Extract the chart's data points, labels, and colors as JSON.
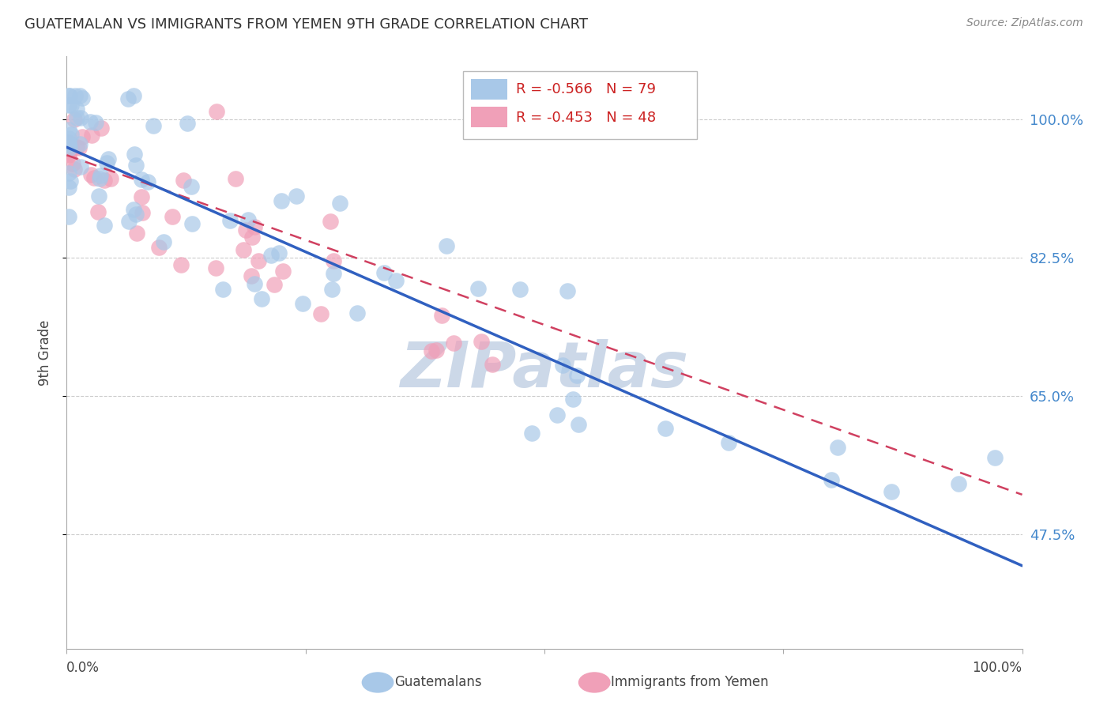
{
  "title": "GUATEMALAN VS IMMIGRANTS FROM YEMEN 9TH GRADE CORRELATION CHART",
  "source": "Source: ZipAtlas.com",
  "ylabel": "9th Grade",
  "ytick_labels": [
    "100.0%",
    "82.5%",
    "65.0%",
    "47.5%"
  ],
  "ytick_values": [
    1.0,
    0.825,
    0.65,
    0.475
  ],
  "xlim": [
    0.0,
    1.0
  ],
  "ylim": [
    0.33,
    1.08
  ],
  "legend_blue_r": "-0.566",
  "legend_blue_n": "79",
  "legend_pink_r": "-0.453",
  "legend_pink_n": "48",
  "blue_label": "Guatemalans",
  "pink_label": "Immigrants from Yemen",
  "blue_color": "#a8c8e8",
  "pink_color": "#f0a0b8",
  "blue_line_color": "#3060c0",
  "pink_line_color": "#d04060",
  "blue_line_x0": 0.0,
  "blue_line_y0": 0.965,
  "blue_line_x1": 1.0,
  "blue_line_y1": 0.435,
  "pink_line_x0": 0.0,
  "pink_line_y0": 0.955,
  "pink_line_x1": 1.0,
  "pink_line_y1": 0.525,
  "grid_color": "#cccccc",
  "background_color": "#ffffff",
  "watermark_text": "ZIPatlas",
  "watermark_color": "#ccd8e8"
}
